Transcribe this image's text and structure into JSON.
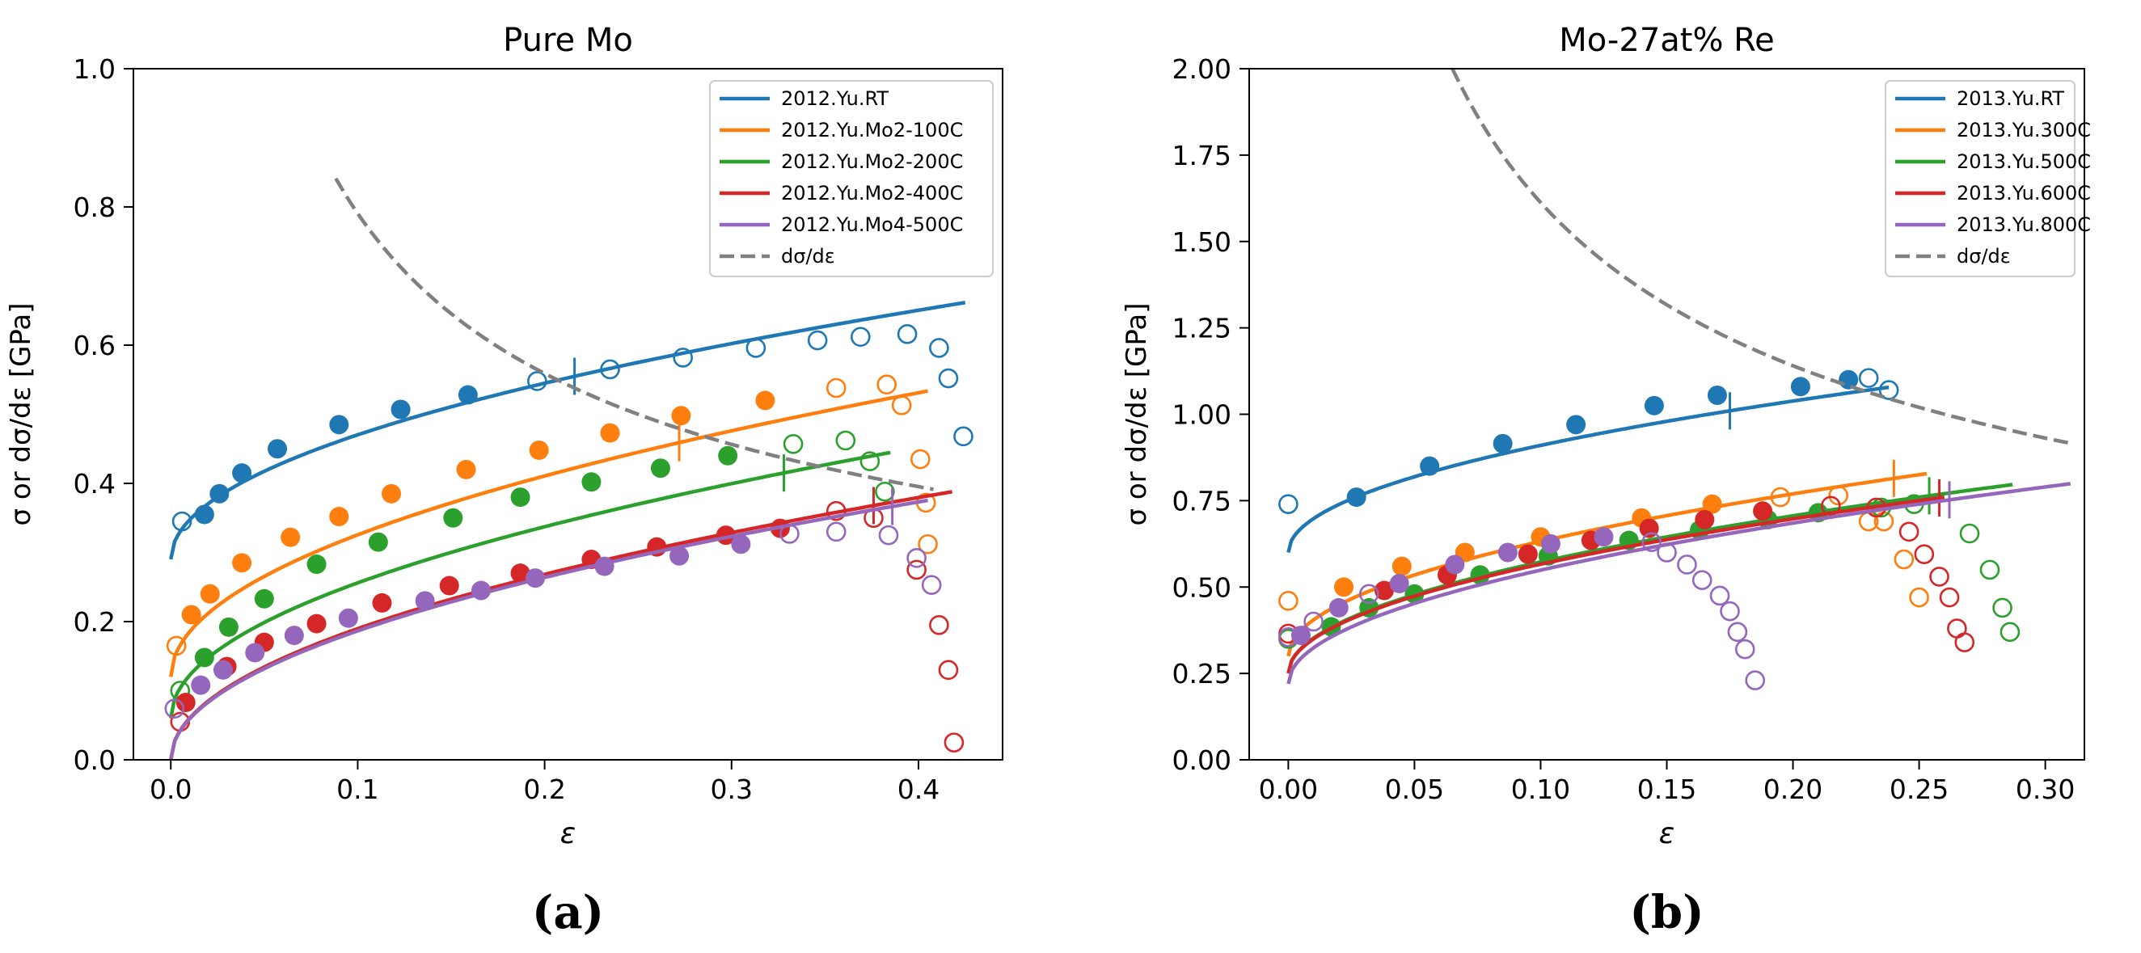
{
  "chart_data": [
    {
      "type": "line",
      "title": "Pure Mo",
      "panel_label": "(a)",
      "xlabel": "ε",
      "ylabel": "σ or dσ/dε [GPa]",
      "xlim": [
        -0.02,
        0.445
      ],
      "ylim": [
        0.0,
        1.0
      ],
      "xticks": [
        0.0,
        0.1,
        0.2,
        0.3,
        0.4
      ],
      "xtick_labels": [
        "0.0",
        "0.1",
        "0.2",
        "0.3",
        "0.4"
      ],
      "yticks": [
        0.0,
        0.2,
        0.4,
        0.6,
        0.8,
        1.0
      ],
      "ytick_labels": [
        "0.0",
        "0.2",
        "0.4",
        "0.6",
        "0.8",
        "1.0"
      ],
      "grid": false,
      "legend_position": "top-right",
      "series": [
        {
          "name": "2012.Yu.RT",
          "color": "#1f77b4",
          "fit": {
            "a": 0.29,
            "b": 0.57,
            "n": 0.5,
            "xmax": 0.425
          },
          "filled": [
            [
              0.018,
              0.355
            ],
            [
              0.026,
              0.385
            ],
            [
              0.038,
              0.415
            ],
            [
              0.057,
              0.45
            ],
            [
              0.09,
              0.485
            ],
            [
              0.123,
              0.507
            ],
            [
              0.159,
              0.528
            ]
          ],
          "open": [
            [
              0.006,
              0.345
            ],
            [
              0.196,
              0.548
            ],
            [
              0.235,
              0.565
            ],
            [
              0.274,
              0.582
            ],
            [
              0.313,
              0.596
            ],
            [
              0.346,
              0.607
            ],
            [
              0.369,
              0.612
            ],
            [
              0.394,
              0.616
            ],
            [
              0.411,
              0.596
            ],
            [
              0.416,
              0.552
            ],
            [
              0.424,
              0.468
            ]
          ],
          "marker_x": 0.216
        },
        {
          "name": "2012.Yu.Mo2-100C",
          "color": "#ff7f0e",
          "fit": {
            "a": 0.12,
            "b": 0.65,
            "n": 0.5,
            "xmax": 0.405
          },
          "filled": [
            [
              0.011,
              0.21
            ],
            [
              0.021,
              0.24
            ],
            [
              0.038,
              0.285
            ],
            [
              0.064,
              0.322
            ],
            [
              0.09,
              0.352
            ],
            [
              0.118,
              0.385
            ],
            [
              0.158,
              0.42
            ],
            [
              0.197,
              0.448
            ],
            [
              0.235,
              0.473
            ],
            [
              0.273,
              0.498
            ],
            [
              0.318,
              0.52
            ]
          ],
          "open": [
            [
              0.003,
              0.165
            ],
            [
              0.356,
              0.538
            ],
            [
              0.383,
              0.543
            ],
            [
              0.391,
              0.513
            ],
            [
              0.401,
              0.435
            ],
            [
              0.404,
              0.372
            ],
            [
              0.405,
              0.312
            ]
          ],
          "marker_x": 0.272
        },
        {
          "name": "2012.Yu.Mo2-200C",
          "color": "#2ca02c",
          "fit": {
            "a": 0.06,
            "b": 0.62,
            "n": 0.5,
            "xmax": 0.385
          },
          "filled": [
            [
              0.018,
              0.148
            ],
            [
              0.031,
              0.192
            ],
            [
              0.05,
              0.233
            ],
            [
              0.078,
              0.283
            ],
            [
              0.111,
              0.315
            ],
            [
              0.151,
              0.35
            ],
            [
              0.187,
              0.38
            ],
            [
              0.225,
              0.402
            ],
            [
              0.262,
              0.422
            ],
            [
              0.298,
              0.44
            ]
          ],
          "open": [
            [
              0.005,
              0.1
            ],
            [
              0.333,
              0.457
            ],
            [
              0.361,
              0.462
            ],
            [
              0.374,
              0.432
            ],
            [
              0.382,
              0.388
            ]
          ],
          "marker_x": 0.328
        },
        {
          "name": "2012.Yu.Mo2-400C",
          "color": "#d62728",
          "fit": {
            "a": 0.0,
            "b": 0.6,
            "n": 0.5,
            "xmax": 0.418
          },
          "filled": [
            [
              0.008,
              0.083
            ],
            [
              0.03,
              0.135
            ],
            [
              0.05,
              0.17
            ],
            [
              0.078,
              0.197
            ],
            [
              0.113,
              0.227
            ],
            [
              0.149,
              0.252
            ],
            [
              0.187,
              0.27
            ],
            [
              0.225,
              0.29
            ],
            [
              0.26,
              0.308
            ],
            [
              0.297,
              0.325
            ],
            [
              0.326,
              0.335
            ]
          ],
          "open": [
            [
              0.005,
              0.055
            ],
            [
              0.356,
              0.36
            ],
            [
              0.376,
              0.35
            ],
            [
              0.399,
              0.275
            ],
            [
              0.411,
              0.195
            ],
            [
              0.416,
              0.13
            ],
            [
              0.419,
              0.025
            ]
          ],
          "marker_x": 0.376
        },
        {
          "name": "2012.Yu.Mo4-500C",
          "color": "#9467bd",
          "fit": {
            "a": 0.0,
            "b": 0.59,
            "n": 0.5,
            "xmax": 0.405
          },
          "filled": [
            [
              0.016,
              0.108
            ],
            [
              0.028,
              0.13
            ],
            [
              0.045,
              0.155
            ],
            [
              0.066,
              0.18
            ],
            [
              0.095,
              0.205
            ],
            [
              0.136,
              0.23
            ],
            [
              0.166,
              0.245
            ],
            [
              0.195,
              0.263
            ],
            [
              0.232,
              0.28
            ],
            [
              0.272,
              0.295
            ],
            [
              0.305,
              0.312
            ]
          ],
          "open": [
            [
              0.002,
              0.074
            ],
            [
              0.331,
              0.327
            ],
            [
              0.356,
              0.33
            ],
            [
              0.384,
              0.325
            ],
            [
              0.399,
              0.292
            ],
            [
              0.407,
              0.253
            ]
          ],
          "marker_x": 0.386
        },
        {
          "name": "dσ/dε",
          "color": "#808080",
          "dashed": true,
          "derivative": {
            "b": 0.5,
            "x0": 0.0883,
            "x1": 0.408
          }
        }
      ]
    },
    {
      "type": "line",
      "title": "Mo-27at% Re",
      "panel_label": "(b)",
      "xlabel": "ε",
      "ylabel": "σ or dσ/dε [GPa]",
      "xlim": [
        -0.0155,
        0.3155
      ],
      "ylim": [
        0.0,
        2.0
      ],
      "xticks": [
        0.0,
        0.05,
        0.1,
        0.15,
        0.2,
        0.25,
        0.3
      ],
      "xtick_labels": [
        "0.00",
        "0.05",
        "0.10",
        "0.15",
        "0.20",
        "0.25",
        "0.30"
      ],
      "yticks": [
        0.0,
        0.25,
        0.5,
        0.75,
        1.0,
        1.25,
        1.5,
        1.75,
        2.0
      ],
      "ytick_labels": [
        "0.00",
        "0.25",
        "0.50",
        "0.75",
        "1.00",
        "1.25",
        "1.50",
        "1.75",
        "2.00"
      ],
      "grid": false,
      "legend_position": "top-right",
      "series": [
        {
          "name": "2013.Yu.RT",
          "color": "#1f77b4",
          "fit": {
            "a": 0.6,
            "b": 0.98,
            "n": 0.5,
            "xmax": 0.238
          },
          "filled": [
            [
              0.027,
              0.76
            ],
            [
              0.056,
              0.85
            ],
            [
              0.085,
              0.915
            ],
            [
              0.114,
              0.97
            ],
            [
              0.145,
              1.025
            ],
            [
              0.17,
              1.055
            ],
            [
              0.203,
              1.08
            ],
            [
              0.222,
              1.1
            ]
          ],
          "open": [
            [
              0.0,
              0.74
            ],
            [
              0.23,
              1.105
            ],
            [
              0.238,
              1.07
            ]
          ],
          "marker_x": 0.175
        },
        {
          "name": "2013.Yu.300C",
          "color": "#ff7f0e",
          "fit": {
            "a": 0.3,
            "b": 1.05,
            "n": 0.5,
            "xmax": 0.253
          },
          "filled": [
            [
              0.022,
              0.5
            ],
            [
              0.045,
              0.56
            ],
            [
              0.07,
              0.6
            ],
            [
              0.1,
              0.645
            ],
            [
              0.14,
              0.7
            ],
            [
              0.168,
              0.74
            ]
          ],
          "open": [
            [
              0.0,
              0.46
            ],
            [
              0.195,
              0.76
            ],
            [
              0.218,
              0.765
            ],
            [
              0.23,
              0.69
            ],
            [
              0.236,
              0.69
            ],
            [
              0.244,
              0.58
            ],
            [
              0.25,
              0.47
            ]
          ],
          "marker_x": 0.24
        },
        {
          "name": "2013.Yu.500C",
          "color": "#2ca02c",
          "fit": {
            "a": 0.25,
            "b": 1.02,
            "n": 0.5,
            "xmax": 0.287
          },
          "filled": [
            [
              0.017,
              0.385
            ],
            [
              0.032,
              0.44
            ],
            [
              0.05,
              0.48
            ],
            [
              0.076,
              0.535
            ],
            [
              0.103,
              0.59
            ],
            [
              0.135,
              0.635
            ],
            [
              0.163,
              0.665
            ],
            [
              0.19,
              0.695
            ],
            [
              0.21,
              0.715
            ]
          ],
          "open": [
            [
              0.0,
              0.35
            ],
            [
              0.235,
              0.73
            ],
            [
              0.248,
              0.74
            ],
            [
              0.27,
              0.655
            ],
            [
              0.278,
              0.55
            ],
            [
              0.283,
              0.44
            ],
            [
              0.286,
              0.37
            ]
          ],
          "marker_x": 0.254
        },
        {
          "name": "2013.Yu.600C",
          "color": "#d62728",
          "fit": {
            "a": 0.25,
            "b": 1.0,
            "n": 0.5,
            "xmax": 0.26
          },
          "filled": [
            [
              0.038,
              0.49
            ],
            [
              0.063,
              0.535
            ],
            [
              0.095,
              0.595
            ],
            [
              0.12,
              0.635
            ],
            [
              0.143,
              0.67
            ],
            [
              0.165,
              0.695
            ],
            [
              0.188,
              0.72
            ]
          ],
          "open": [
            [
              0.0,
              0.365
            ],
            [
              0.215,
              0.735
            ],
            [
              0.233,
              0.73
            ],
            [
              0.246,
              0.66
            ],
            [
              0.252,
              0.595
            ],
            [
              0.258,
              0.53
            ],
            [
              0.262,
              0.47
            ],
            [
              0.265,
              0.38
            ],
            [
              0.268,
              0.34
            ]
          ],
          "marker_x": 0.258
        },
        {
          "name": "2013.Yu.800C",
          "color": "#9467bd",
          "fit": {
            "a": 0.22,
            "b": 1.04,
            "n": 0.5,
            "xmax": 0.31
          },
          "filled": [
            [
              0.005,
              0.36
            ],
            [
              0.02,
              0.44
            ],
            [
              0.044,
              0.51
            ],
            [
              0.066,
              0.565
            ],
            [
              0.087,
              0.6
            ],
            [
              0.104,
              0.625
            ],
            [
              0.125,
              0.645
            ]
          ],
          "open": [
            [
              0.0,
              0.355
            ],
            [
              0.01,
              0.4
            ],
            [
              0.032,
              0.48
            ],
            [
              0.144,
              0.63
            ],
            [
              0.15,
              0.6
            ],
            [
              0.158,
              0.565
            ],
            [
              0.164,
              0.52
            ],
            [
              0.171,
              0.475
            ],
            [
              0.175,
              0.43
            ],
            [
              0.178,
              0.37
            ],
            [
              0.181,
              0.32
            ],
            [
              0.185,
              0.23
            ]
          ],
          "marker_x": 0.262
        },
        {
          "name": "dσ/dε",
          "color": "#808080",
          "dashed": true,
          "derivative": {
            "b": 1.02,
            "x0": 0.065,
            "x1": 0.31
          }
        }
      ]
    }
  ]
}
